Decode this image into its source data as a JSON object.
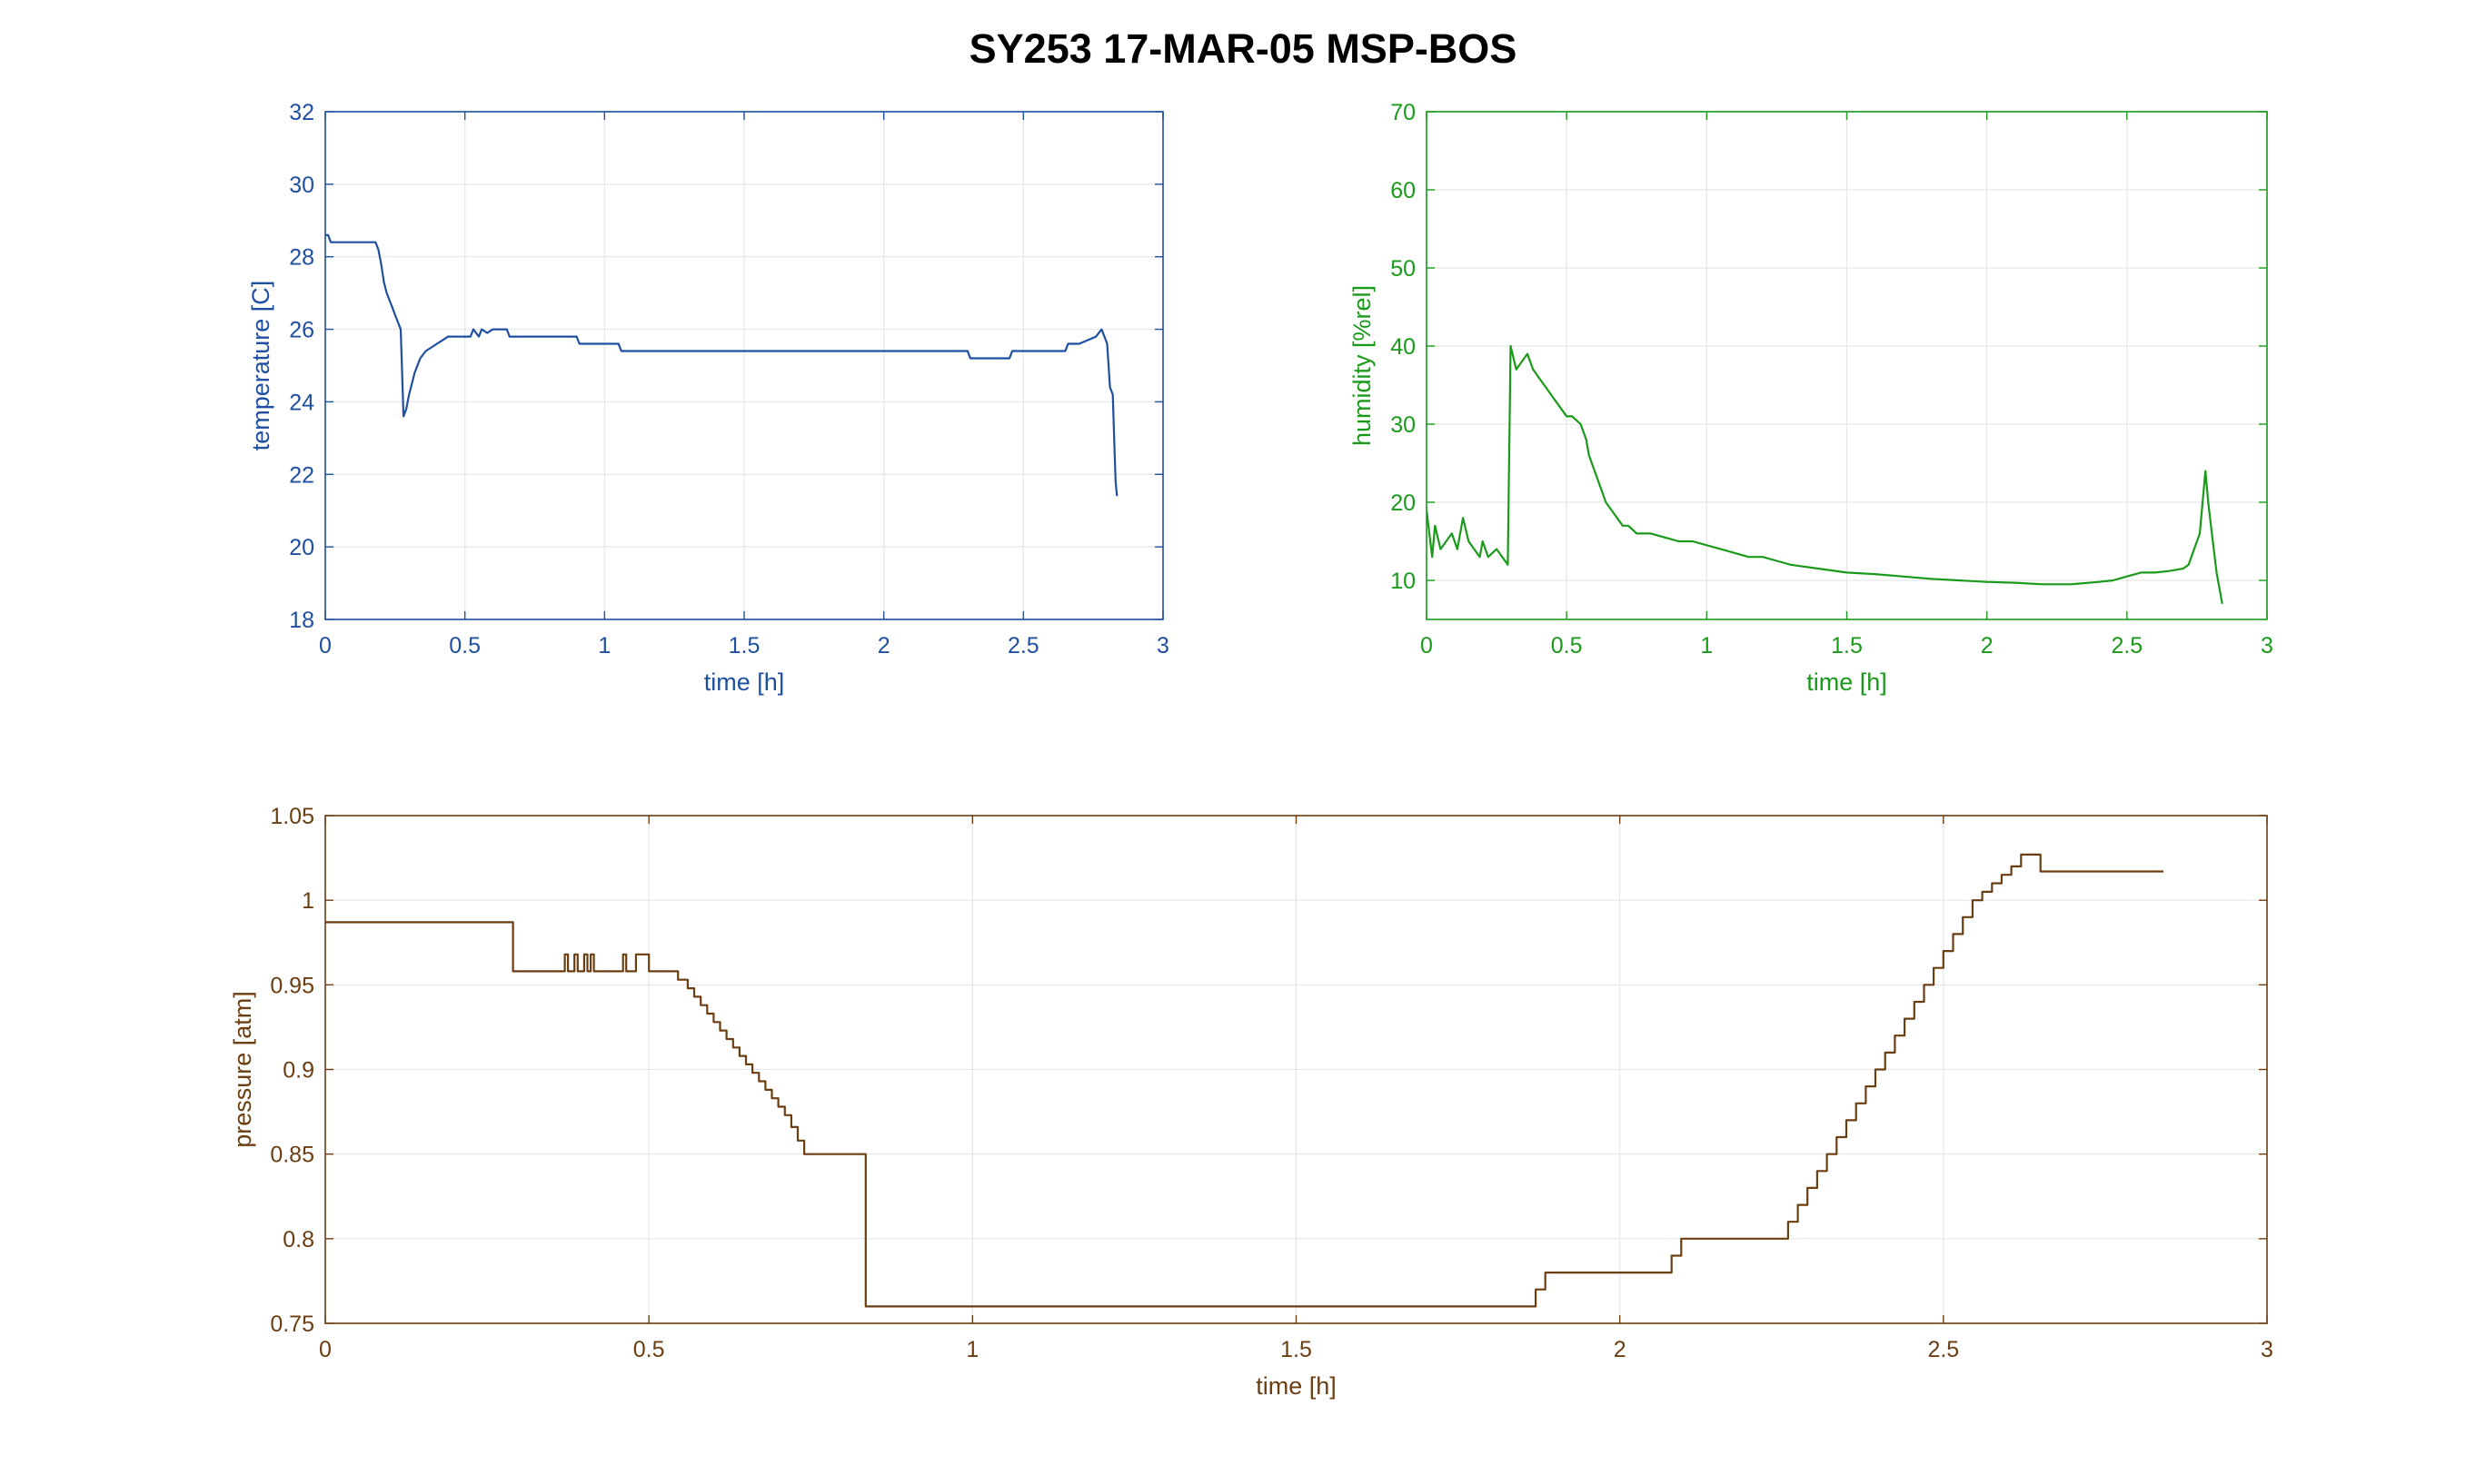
{
  "figure": {
    "title": "SY253 17-MAR-05 MSP-BOS"
  },
  "chart_data": [
    {
      "type": "line",
      "name": "temperature",
      "color": "#1f4fa0",
      "xlabel": "time [h]",
      "ylabel": "temperature [C]",
      "xlim": [
        0,
        3
      ],
      "ylim": [
        18,
        32
      ],
      "xticks": [
        "0",
        "0.5",
        "1",
        "1.5",
        "2",
        "2.5",
        "3"
      ],
      "yticks": [
        "18",
        "20",
        "22",
        "24",
        "26",
        "28",
        "30",
        "32"
      ],
      "grid": true,
      "step": false,
      "x": [
        0,
        0.01,
        0.02,
        0.18,
        0.19,
        0.2,
        0.21,
        0.22,
        0.23,
        0.24,
        0.25,
        0.26,
        0.27,
        0.28,
        0.29,
        0.3,
        0.31,
        0.32,
        0.33,
        0.34,
        0.36,
        0.38,
        0.4,
        0.42,
        0.44,
        0.46,
        0.5,
        0.52,
        0.53,
        0.55,
        0.56,
        0.58,
        0.6,
        0.62,
        0.65,
        0.66,
        0.9,
        0.91,
        1.05,
        1.06,
        1.07,
        1.5,
        2.0,
        2.3,
        2.31,
        2.45,
        2.46,
        2.65,
        2.66,
        2.7,
        2.76,
        2.78,
        2.79,
        2.8,
        2.81,
        2.82,
        2.825,
        2.83,
        2.835
      ],
      "y": [
        28.6,
        28.6,
        28.4,
        28.4,
        28.2,
        27.8,
        27.3,
        27.0,
        26.8,
        26.6,
        26.4,
        26.2,
        26.0,
        23.6,
        23.8,
        24.2,
        24.5,
        24.8,
        25.0,
        25.2,
        25.4,
        25.5,
        25.6,
        25.7,
        25.8,
        25.8,
        25.8,
        25.8,
        26.0,
        25.8,
        26.0,
        25.9,
        26.0,
        26.0,
        26.0,
        25.8,
        25.8,
        25.6,
        25.6,
        25.4,
        25.4,
        25.4,
        25.4,
        25.4,
        25.2,
        25.2,
        25.4,
        25.4,
        25.6,
        25.6,
        25.8,
        26.0,
        25.8,
        25.6,
        24.4,
        24.2,
        23.0,
        21.8,
        21.4
      ]
    },
    {
      "type": "line",
      "name": "humidity",
      "color": "#1a9a1a",
      "xlabel": "time [h]",
      "ylabel": "humidity [%rel]",
      "xlim": [
        0,
        3
      ],
      "ylim": [
        5,
        70
      ],
      "xticks": [
        "0",
        "0.5",
        "1",
        "1.5",
        "2",
        "2.5",
        "3"
      ],
      "yticks": [
        "10",
        "20",
        "30",
        "40",
        "50",
        "60",
        "70"
      ],
      "grid": true,
      "step": false,
      "x": [
        0,
        0.01,
        0.02,
        0.03,
        0.05,
        0.07,
        0.09,
        0.11,
        0.13,
        0.15,
        0.17,
        0.19,
        0.2,
        0.21,
        0.22,
        0.25,
        0.27,
        0.29,
        0.3,
        0.32,
        0.34,
        0.36,
        0.38,
        0.4,
        0.42,
        0.44,
        0.46,
        0.48,
        0.5,
        0.52,
        0.55,
        0.57,
        0.58,
        0.6,
        0.62,
        0.64,
        0.66,
        0.68,
        0.7,
        0.72,
        0.75,
        0.8,
        0.85,
        0.9,
        0.95,
        1.0,
        1.05,
        1.1,
        1.15,
        1.2,
        1.25,
        1.3,
        1.4,
        1.5,
        1.6,
        1.7,
        1.8,
        1.9,
        2.0,
        2.1,
        2.2,
        2.3,
        2.4,
        2.45,
        2.5,
        2.55,
        2.6,
        2.65,
        2.7,
        2.72,
        2.74,
        2.76,
        2.77,
        2.78,
        2.79,
        2.8,
        2.81,
        2.82,
        2.83,
        2.84
      ],
      "y": [
        19,
        16,
        13,
        17,
        14,
        15,
        16,
        14,
        18,
        15,
        14,
        13,
        15,
        14,
        13,
        14,
        13,
        12,
        40,
        37,
        38,
        39,
        37,
        36,
        35,
        34,
        33,
        32,
        31,
        31,
        30,
        28,
        26,
        24,
        22,
        20,
        19,
        18,
        17,
        17,
        16,
        16,
        15.5,
        15,
        15,
        14.5,
        14,
        13.5,
        13,
        13,
        12.5,
        12,
        11.5,
        11,
        10.8,
        10.5,
        10.2,
        10,
        9.8,
        9.7,
        9.5,
        9.5,
        9.8,
        10,
        10.5,
        11,
        11,
        11.2,
        11.5,
        12,
        14,
        16,
        20,
        24,
        20,
        17,
        14,
        11,
        9,
        7
      ]
    },
    {
      "type": "line",
      "name": "pressure",
      "color": "#6b3e12",
      "xlabel": "time [h]",
      "ylabel": "pressure [atm]",
      "xlim": [
        0,
        3
      ],
      "ylim": [
        0.75,
        1.05
      ],
      "xticks": [
        "0",
        "0.5",
        "1",
        "1.5",
        "2",
        "2.5",
        "3"
      ],
      "yticks": [
        "0.75",
        "0.8",
        "0.85",
        "0.9",
        "0.95",
        "1",
        "1.05"
      ],
      "grid": true,
      "step": true,
      "x": [
        0,
        0.29,
        0.37,
        0.375,
        0.385,
        0.39,
        0.4,
        0.405,
        0.41,
        0.415,
        0.46,
        0.465,
        0.48,
        0.5,
        0.53,
        0.545,
        0.56,
        0.57,
        0.58,
        0.59,
        0.6,
        0.61,
        0.62,
        0.63,
        0.64,
        0.65,
        0.66,
        0.67,
        0.68,
        0.69,
        0.7,
        0.71,
        0.72,
        0.73,
        0.74,
        0.835,
        1.87,
        1.885,
        2.08,
        2.095,
        2.26,
        2.275,
        2.29,
        2.305,
        2.32,
        2.335,
        2.35,
        2.365,
        2.38,
        2.395,
        2.41,
        2.425,
        2.44,
        2.455,
        2.47,
        2.485,
        2.5,
        2.515,
        2.53,
        2.545,
        2.56,
        2.575,
        2.59,
        2.605,
        2.62,
        2.65,
        2.84
      ],
      "y": [
        0.987,
        0.958,
        0.968,
        0.958,
        0.968,
        0.958,
        0.968,
        0.958,
        0.968,
        0.958,
        0.968,
        0.958,
        0.968,
        0.958,
        0.958,
        0.953,
        0.948,
        0.943,
        0.938,
        0.933,
        0.928,
        0.923,
        0.918,
        0.913,
        0.908,
        0.903,
        0.898,
        0.893,
        0.888,
        0.883,
        0.878,
        0.873,
        0.866,
        0.858,
        0.85,
        0.76,
        0.77,
        0.78,
        0.79,
        0.8,
        0.81,
        0.82,
        0.83,
        0.84,
        0.85,
        0.86,
        0.87,
        0.88,
        0.89,
        0.9,
        0.91,
        0.92,
        0.93,
        0.94,
        0.95,
        0.96,
        0.97,
        0.98,
        0.99,
        1.0,
        1.005,
        1.01,
        1.015,
        1.02,
        1.027,
        1.017,
        1.017
      ]
    }
  ]
}
